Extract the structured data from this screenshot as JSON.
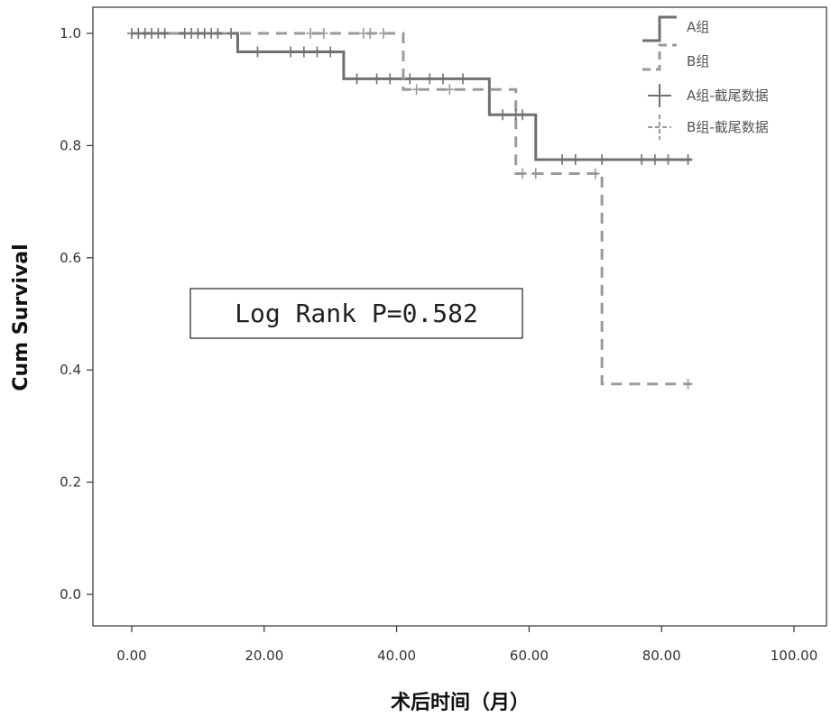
{
  "chart_data": {
    "type": "line",
    "subtype": "kaplan-meier step",
    "xlabel": "术后时间（月）",
    "ylabel": "Cum Survival",
    "xlim": [
      0,
      100
    ],
    "ylim": [
      0,
      1.0
    ],
    "x_ticks": [
      "0.00",
      "20.00",
      "40.00",
      "60.00",
      "80.00",
      "100.00"
    ],
    "y_ticks": [
      "0.0",
      "0.2",
      "0.4",
      "0.6",
      "0.8",
      "1.0"
    ],
    "grid": false,
    "legend_position": "top-right",
    "annotation": "Log Rank P=0.582",
    "legend": [
      {
        "label": "A组",
        "kind": "step-solid"
      },
      {
        "label": "B组",
        "kind": "step-dashed"
      },
      {
        "label": "A组-截尾数据",
        "kind": "censor-solid"
      },
      {
        "label": "B组-截尾数据",
        "kind": "censor-dashed"
      }
    ],
    "series": [
      {
        "name": "A组",
        "style": "solid",
        "color": "#707070",
        "steps": [
          [
            0,
            1.0
          ],
          [
            16,
            0.967
          ],
          [
            32,
            0.919
          ],
          [
            54,
            0.855
          ],
          [
            61,
            0.775
          ],
          [
            84.5,
            0.775
          ]
        ],
        "censored": [
          [
            0,
            1.0
          ],
          [
            1,
            1.0
          ],
          [
            2,
            1.0
          ],
          [
            3,
            1.0
          ],
          [
            4,
            1.0
          ],
          [
            5,
            1.0
          ],
          [
            8,
            1.0
          ],
          [
            9,
            1.0
          ],
          [
            10,
            1.0
          ],
          [
            11,
            1.0
          ],
          [
            12,
            1.0
          ],
          [
            13,
            1.0
          ],
          [
            15,
            1.0
          ],
          [
            19,
            0.967
          ],
          [
            24,
            0.967
          ],
          [
            26,
            0.967
          ],
          [
            28,
            0.967
          ],
          [
            30,
            0.967
          ],
          [
            34,
            0.919
          ],
          [
            37,
            0.919
          ],
          [
            39,
            0.919
          ],
          [
            42,
            0.919
          ],
          [
            45,
            0.919
          ],
          [
            47,
            0.919
          ],
          [
            50,
            0.919
          ],
          [
            56,
            0.855
          ],
          [
            58,
            0.855
          ],
          [
            59,
            0.855
          ],
          [
            65,
            0.775
          ],
          [
            67,
            0.775
          ],
          [
            71,
            0.775
          ],
          [
            77,
            0.775
          ],
          [
            79,
            0.775
          ],
          [
            81,
            0.775
          ],
          [
            84,
            0.775
          ]
        ]
      },
      {
        "name": "B组",
        "style": "dashed",
        "color": "#9a9a9a",
        "steps": [
          [
            0,
            1.0
          ],
          [
            41,
            0.9
          ],
          [
            58,
            0.75
          ],
          [
            71,
            0.375
          ],
          [
            84.5,
            0.375
          ]
        ],
        "censored": [
          [
            27,
            1.0
          ],
          [
            29,
            1.0
          ],
          [
            35,
            1.0
          ],
          [
            36,
            1.0
          ],
          [
            38,
            1.0
          ],
          [
            43,
            0.9
          ],
          [
            48,
            0.9
          ],
          [
            59,
            0.75
          ],
          [
            61,
            0.75
          ],
          [
            70,
            0.75
          ],
          [
            84,
            0.375
          ]
        ]
      }
    ]
  }
}
